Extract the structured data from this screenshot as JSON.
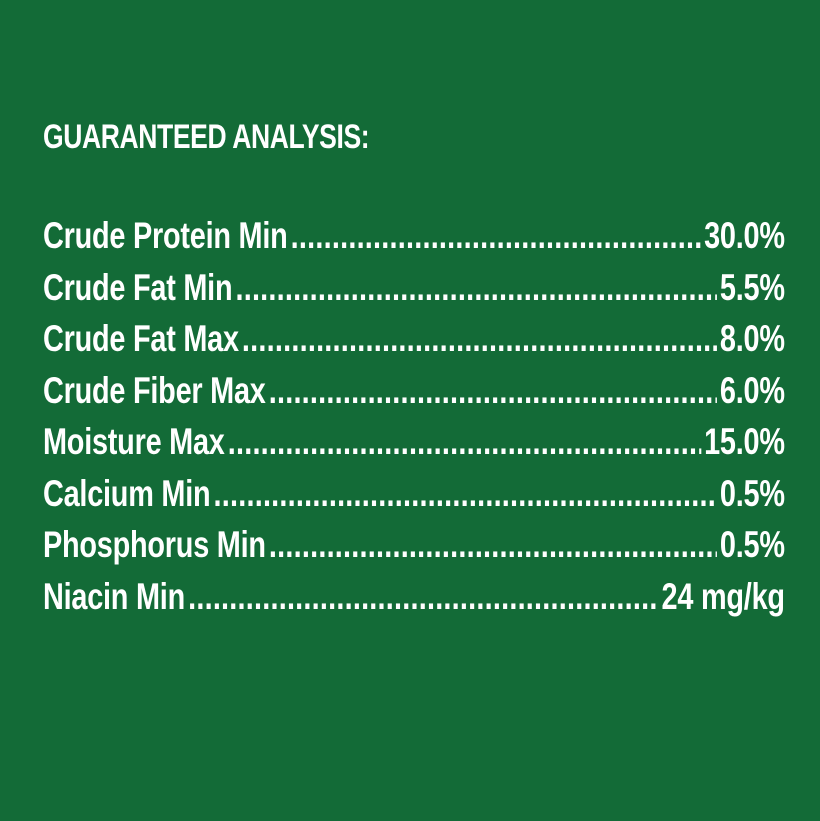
{
  "title": "GUARANTEED ANALYSIS:",
  "colors": {
    "background": "#136b37",
    "text": "#ffffff"
  },
  "rows": [
    {
      "label": "Crude Protein Min",
      "value": "30.0%"
    },
    {
      "label": "Crude Fat Min",
      "value": "5.5%"
    },
    {
      "label": "Crude Fat Max",
      "value": "8.0%"
    },
    {
      "label": "Crude Fiber Max",
      "value": "6.0%"
    },
    {
      "label": "Moisture Max",
      "value": "15.0%"
    },
    {
      "label": "Calcium Min",
      "value": "0.5%"
    },
    {
      "label": "Phosphorus Min",
      "value": "0.5%"
    },
    {
      "label": "Niacin Min",
      "value": "24 mg/kg"
    }
  ]
}
